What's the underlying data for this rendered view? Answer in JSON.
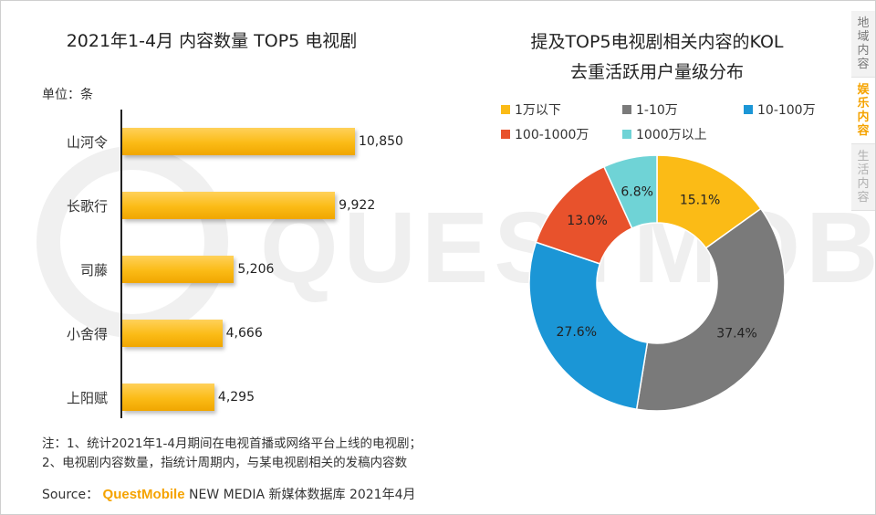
{
  "watermark": "QUESTMOBILE",
  "left_chart_title": "2021年1-4月 内容数量 TOP5 电视剧",
  "unit_label": "单位：条",
  "right_chart_title_line1": "提及TOP5电视剧相关内容的KOL",
  "right_chart_title_line2": "去重活跃用户量级分布",
  "notes": [
    "注：1、统计2021年1-4月期间在电视首播或网络平台上线的电视剧；",
    "2、电视剧内容数量，指统计周期内，与某电视剧相关的发稿内容数"
  ],
  "source": {
    "prefix": "Source：",
    "brand": "QuestMobile",
    "suffix": "NEW MEDIA 新媒体数据库 2021年4月"
  },
  "side_tabs": [
    {
      "label": "地域内容",
      "state": "normal"
    },
    {
      "label": "娱乐内容",
      "state": "active"
    },
    {
      "label": "生活内容",
      "state": "muted"
    }
  ],
  "colors": {
    "bar": "#fbbb16",
    "accent": "#f5a300",
    "seg1": "#fbbb16",
    "seg2": "#7a7a7a",
    "seg3": "#1b96d6",
    "seg4": "#e8522c",
    "seg5": "#6fd3d6"
  },
  "chart_data": [
    {
      "type": "bar",
      "orientation": "horizontal",
      "title": "2021年1-4月 内容数量 TOP5 电视剧",
      "unit": "条",
      "categories": [
        "山河令",
        "长歌行",
        "司藤",
        "小舍得",
        "上阳赋"
      ],
      "values": [
        10850,
        9922,
        5206,
        4666,
        4295
      ],
      "value_labels": [
        "10,850",
        "9,922",
        "5,206",
        "4,666",
        "4,295"
      ],
      "xlim": [
        0,
        12000
      ]
    },
    {
      "type": "pie",
      "variant": "donut",
      "title": "提及TOP5电视剧相关内容的KOL去重活跃用户量级分布",
      "labels": [
        "1万以下",
        "1-10万",
        "10-100万",
        "100-1000万",
        "1000万以上"
      ],
      "values": [
        15.1,
        37.4,
        27.6,
        13.0,
        6.8
      ],
      "value_labels": [
        "15.1%",
        "37.4%",
        "27.6%",
        "13.0%",
        "6.8%"
      ],
      "start": "12 o'clock",
      "direction": "clockwise"
    }
  ]
}
